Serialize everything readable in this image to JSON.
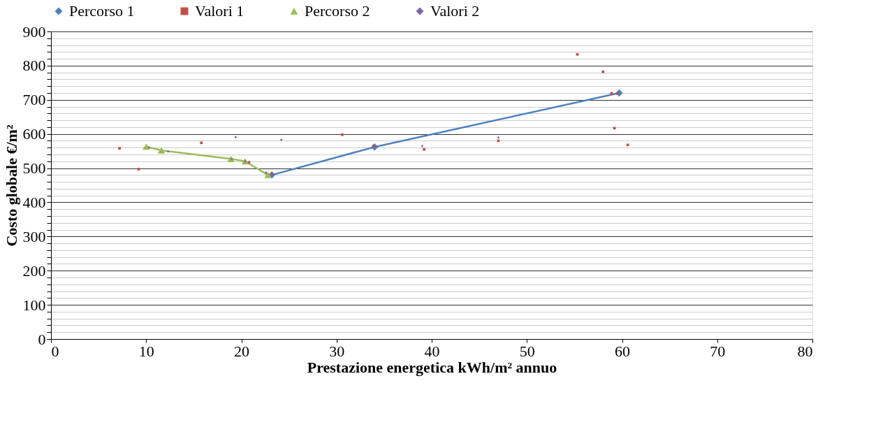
{
  "chart_data": {
    "type": "scatter",
    "xlabel": "Prestazione energetica  kWh/m² annuo",
    "ylabel": "Costo globale €/m²",
    "xlim": [
      0,
      80
    ],
    "xticks": [
      0,
      10,
      20,
      30,
      40,
      50,
      60,
      70,
      80
    ],
    "ylim": [
      0,
      900
    ],
    "yticks": [
      0,
      {
        "value": 20,
        "label": null
      },
      {
        "value": 40,
        "label": null
      },
      {
        "value": 60,
        "label": null
      },
      {
        "value": 80,
        "label": null
      },
      100,
      {
        "value": 120,
        "label": null
      },
      {
        "value": 140,
        "label": null
      },
      {
        "value": 160,
        "label": null
      },
      {
        "value": 180,
        "label": null
      },
      200,
      {
        "value": 220,
        "label": null
      },
      {
        "value": 240,
        "label": null
      },
      {
        "value": 260,
        "label": null
      },
      {
        "value": 280,
        "label": null
      },
      300,
      {
        "value": 320,
        "label": null
      },
      {
        "value": 340,
        "label": null
      },
      {
        "value": 360,
        "label": null
      },
      {
        "value": 380,
        "label": null
      },
      400,
      {
        "value": 420,
        "label": null
      },
      {
        "value": 440,
        "label": null
      },
      {
        "value": 460,
        "label": null
      },
      {
        "value": 480,
        "label": null
      },
      500,
      {
        "value": 520,
        "label": null
      },
      {
        "value": 540,
        "label": null
      },
      {
        "value": 560,
        "label": null
      },
      {
        "value": 580,
        "label": null
      },
      600,
      {
        "value": 620,
        "label": null
      },
      {
        "value": 640,
        "label": null
      },
      {
        "value": 660,
        "label": null
      },
      {
        "value": 680,
        "label": null
      },
      700,
      {
        "value": 720,
        "label": null
      },
      {
        "value": 740,
        "label": null
      },
      {
        "value": 760,
        "label": null
      },
      {
        "value": 780,
        "label": null
      },
      800,
      {
        "value": 820,
        "label": null
      },
      {
        "value": 840,
        "label": null
      },
      {
        "value": 860,
        "label": null
      },
      {
        "value": 880,
        "label": null
      },
      900
    ],
    "grid": "y",
    "legend": "top",
    "series": [
      {
        "name": "Percorso 1",
        "type": "line",
        "marker": "diamond",
        "color": "#4f81bd",
        "x": [
          23.2,
          34,
          59.7
        ],
        "values": [
          480,
          562,
          720
        ]
      },
      {
        "name": "Valori 1",
        "type": "scatter",
        "marker": "square",
        "color": "#c0504d",
        "x": [
          7.2,
          9.2,
          15.8,
          20.8,
          23.2,
          30.6,
          33.9,
          39.2,
          47,
          55.3,
          58,
          58.9,
          59.2,
          59.5,
          60.6
        ],
        "values": [
          558,
          497,
          574,
          517,
          482,
          598,
          565,
          555,
          580,
          833,
          782,
          719,
          617,
          718,
          568
        ]
      },
      {
        "name": "Percorso 2",
        "type": "line",
        "marker": "triangle",
        "color": "#9bbb59",
        "x": [
          10,
          11.6,
          18.9,
          20.4,
          22.8
        ],
        "values": [
          563,
          552,
          527,
          520,
          480
        ]
      },
      {
        "name": "Valori 2",
        "type": "scatter",
        "marker": "diamond",
        "color": "#8064a2",
        "x": [
          10.3,
          12.3,
          19,
          19.4,
          20.4,
          22.6,
          24.2,
          34.2,
          39,
          47
        ],
        "values": [
          560,
          549,
          527,
          591,
          520,
          487,
          583,
          563,
          565,
          590
        ]
      }
    ]
  }
}
